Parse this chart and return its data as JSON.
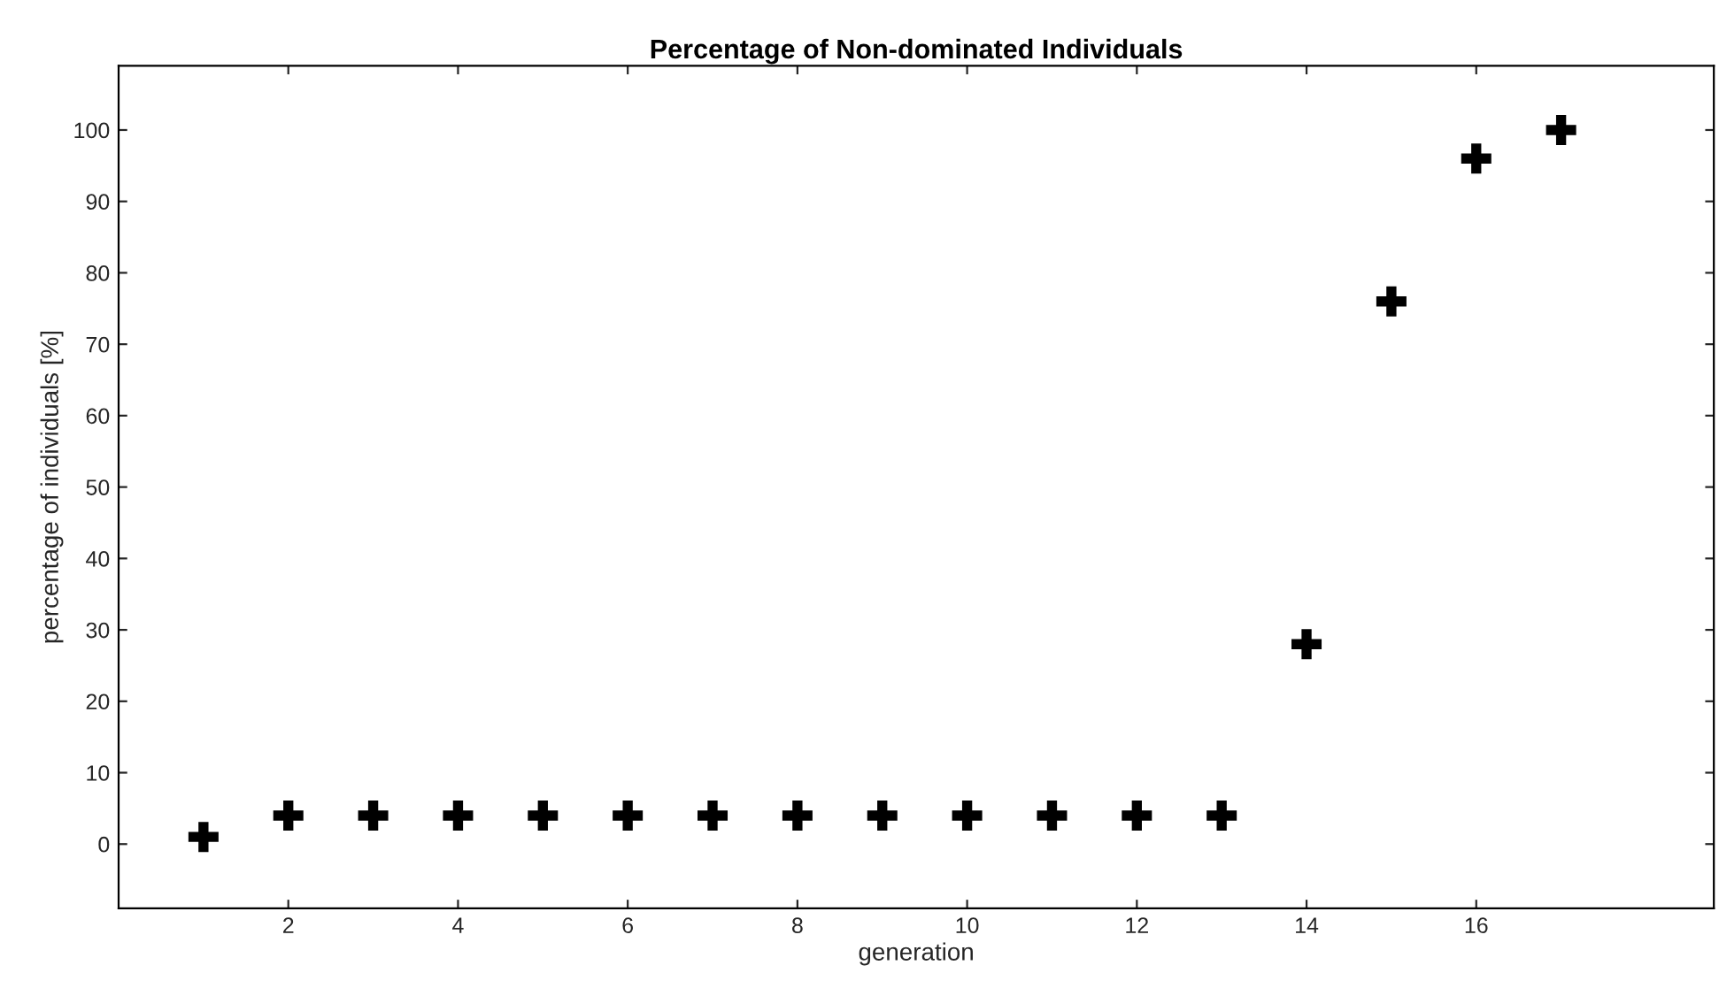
{
  "chart_data": {
    "type": "scatter",
    "title": "Percentage of Non-dominated Individuals",
    "xlabel": "generation",
    "ylabel": "percentage of individuals [%]",
    "x": [
      1,
      2,
      3,
      4,
      5,
      6,
      7,
      8,
      9,
      10,
      11,
      12,
      13,
      14,
      15,
      16,
      17
    ],
    "values": [
      1,
      4,
      4,
      4,
      4,
      4,
      4,
      4,
      4,
      4,
      4,
      4,
      4,
      28,
      76,
      96,
      100
    ],
    "color": "#000000",
    "marker": "cross",
    "xlim": [
      0,
      18.8
    ],
    "ylim": [
      -9,
      109
    ],
    "xticks": [
      2,
      4,
      6,
      8,
      10,
      12,
      14,
      16
    ],
    "yticks": [
      0,
      10,
      20,
      30,
      40,
      50,
      60,
      70,
      80,
      90,
      100
    ],
    "grid": false
  }
}
